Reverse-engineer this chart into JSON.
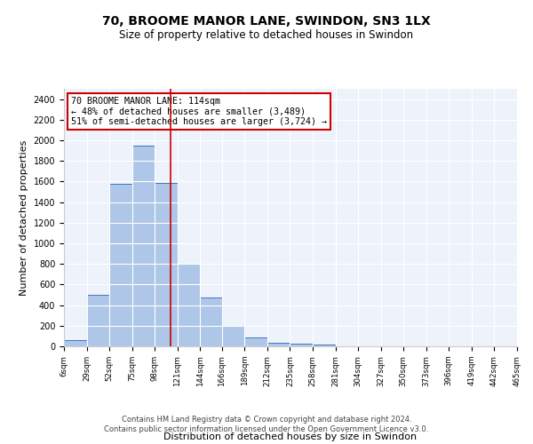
{
  "title": "70, BROOME MANOR LANE, SWINDON, SN3 1LX",
  "subtitle": "Size of property relative to detached houses in Swindon",
  "xlabel": "Distribution of detached houses by size in Swindon",
  "ylabel": "Number of detached properties",
  "bar_edges": [
    6,
    29,
    52,
    75,
    98,
    121,
    144,
    166,
    189,
    212,
    235,
    258,
    281,
    304,
    327,
    350,
    373,
    396,
    419,
    442,
    465
  ],
  "bar_heights": [
    60,
    500,
    1580,
    1950,
    1590,
    800,
    475,
    200,
    90,
    35,
    28,
    20,
    0,
    0,
    0,
    0,
    0,
    0,
    0,
    0
  ],
  "bar_color": "#aec6e8",
  "bar_edge_color": "#4472c4",
  "property_size": 114,
  "property_line_color": "#cc0000",
  "annotation_text": "70 BROOME MANOR LANE: 114sqm\n← 48% of detached houses are smaller (3,489)\n51% of semi-detached houses are larger (3,724) →",
  "annotation_box_color": "#ffffff",
  "annotation_box_edge_color": "#cc0000",
  "ylim": [
    0,
    2500
  ],
  "yticks": [
    0,
    200,
    400,
    600,
    800,
    1000,
    1200,
    1400,
    1600,
    1800,
    2000,
    2200,
    2400
  ],
  "tick_labels": [
    "6sqm",
    "29sqm",
    "52sqm",
    "75sqm",
    "98sqm",
    "121sqm",
    "144sqm",
    "166sqm",
    "189sqm",
    "212sqm",
    "235sqm",
    "258sqm",
    "281sqm",
    "304sqm",
    "327sqm",
    "350sqm",
    "373sqm",
    "396sqm",
    "419sqm",
    "442sqm",
    "465sqm"
  ],
  "footer_line1": "Contains HM Land Registry data © Crown copyright and database right 2024.",
  "footer_line2": "Contains public sector information licensed under the Open Government Licence v3.0.",
  "plot_bg_color": "#eef2fb"
}
